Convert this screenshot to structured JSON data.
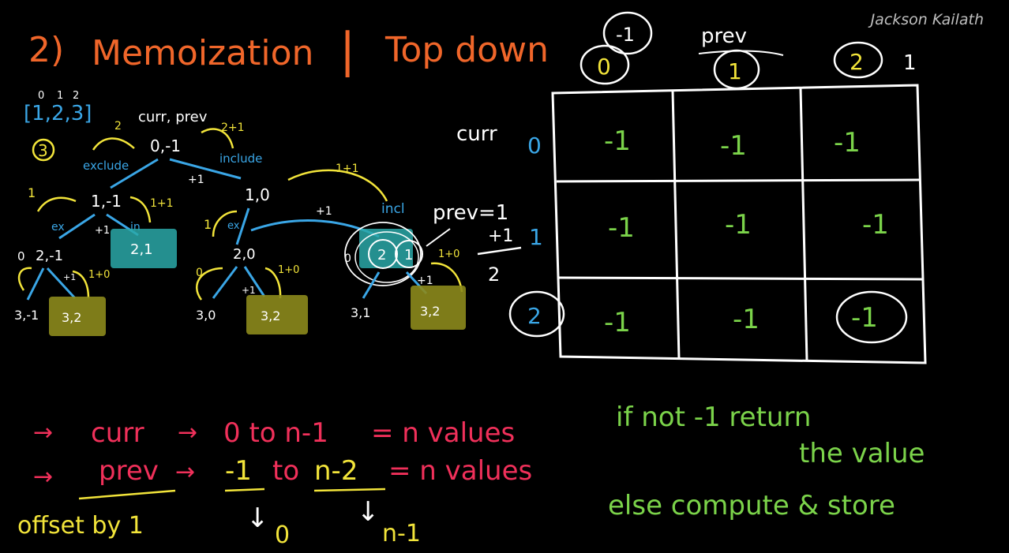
{
  "watermark": "Jackson Kailath",
  "title": {
    "number": "2)",
    "left": "Memoization",
    "divider": "|",
    "right": "Top down"
  },
  "array": {
    "indices": [
      "0",
      "1",
      "2"
    ],
    "values": "[1,2,3]",
    "n": "3"
  },
  "tree": {
    "root_header": "curr, prev",
    "root": "0,-1",
    "edge_exclude": "exclude",
    "edge_include": "include",
    "root_left_cost": "2",
    "root_right_cost": "2+1",
    "root_plus": "+1",
    "l1_left": "1,-1",
    "l1_right": "1,0",
    "l1_left_ret": "1",
    "l1_left_ret2": "1+1",
    "l1_left_ex": "ex",
    "l1_left_in": "in",
    "l1_left_plus": "+1",
    "memo_21": "2,1",
    "l2_a": "2,-1",
    "l2_a_ret": "0",
    "l2_a_plus": "+1",
    "l2_a_ret2": "1+0",
    "l3_a": "3,-1",
    "memo_32_a": "3,2",
    "l1_right_ret": "1",
    "l1_right_ex": "ex",
    "l1_right_plus": "+1",
    "incl_top": "1+1",
    "incl_label": "incl",
    "l2_b": "2,0",
    "l2_b_ret": "0",
    "l2_b_plus": "+1",
    "l2_b_ret2": "1+0",
    "l3_b": "3,0",
    "memo_32_b": "3,2",
    "circle_2": "2",
    "circle_1": "1",
    "l2_c_ret": "0",
    "l2_c_ret2": "1+0",
    "l2_c_plus": "+1",
    "l3_c": "3,1",
    "memo_32_c": "3,2"
  },
  "prev_note": {
    "label": "prev=1",
    "plus": "+1",
    "total": "2"
  },
  "table": {
    "prev_label": "prev",
    "curr_label": "curr",
    "col_headers": [
      "0",
      "1",
      "2"
    ],
    "col_extra_top": "-1",
    "col_extra_right": "1",
    "row_headers": [
      "0",
      "1",
      "2"
    ],
    "cells": [
      [
        "-1",
        "-1",
        "-1"
      ],
      [
        "-1",
        "-1",
        "-1"
      ],
      [
        "-1",
        "-1",
        "-1"
      ]
    ]
  },
  "notes": {
    "line1_a": "curr",
    "line1_b": "0 to n-1",
    "line1_c": "= n values",
    "line2_a": "prev",
    "line2_b": "-1",
    "line2_c": "to",
    "line2_d": "n-2",
    "line2_e": "= n values",
    "offset": "offset by 1",
    "arrow_0": "0",
    "arrow_n1": "n-1"
  },
  "rule": {
    "line1": "if not -1 return",
    "line2": "the value",
    "line3": "else compute & store"
  },
  "colors": {
    "orange": "#f0662a",
    "blue": "#3aa6e6",
    "yellow": "#f2e43a",
    "white": "#ffffff",
    "green": "#7bd34a",
    "red": "#f0305a",
    "teal": "#2aa8a8",
    "olive": "#8c8a1c"
  }
}
